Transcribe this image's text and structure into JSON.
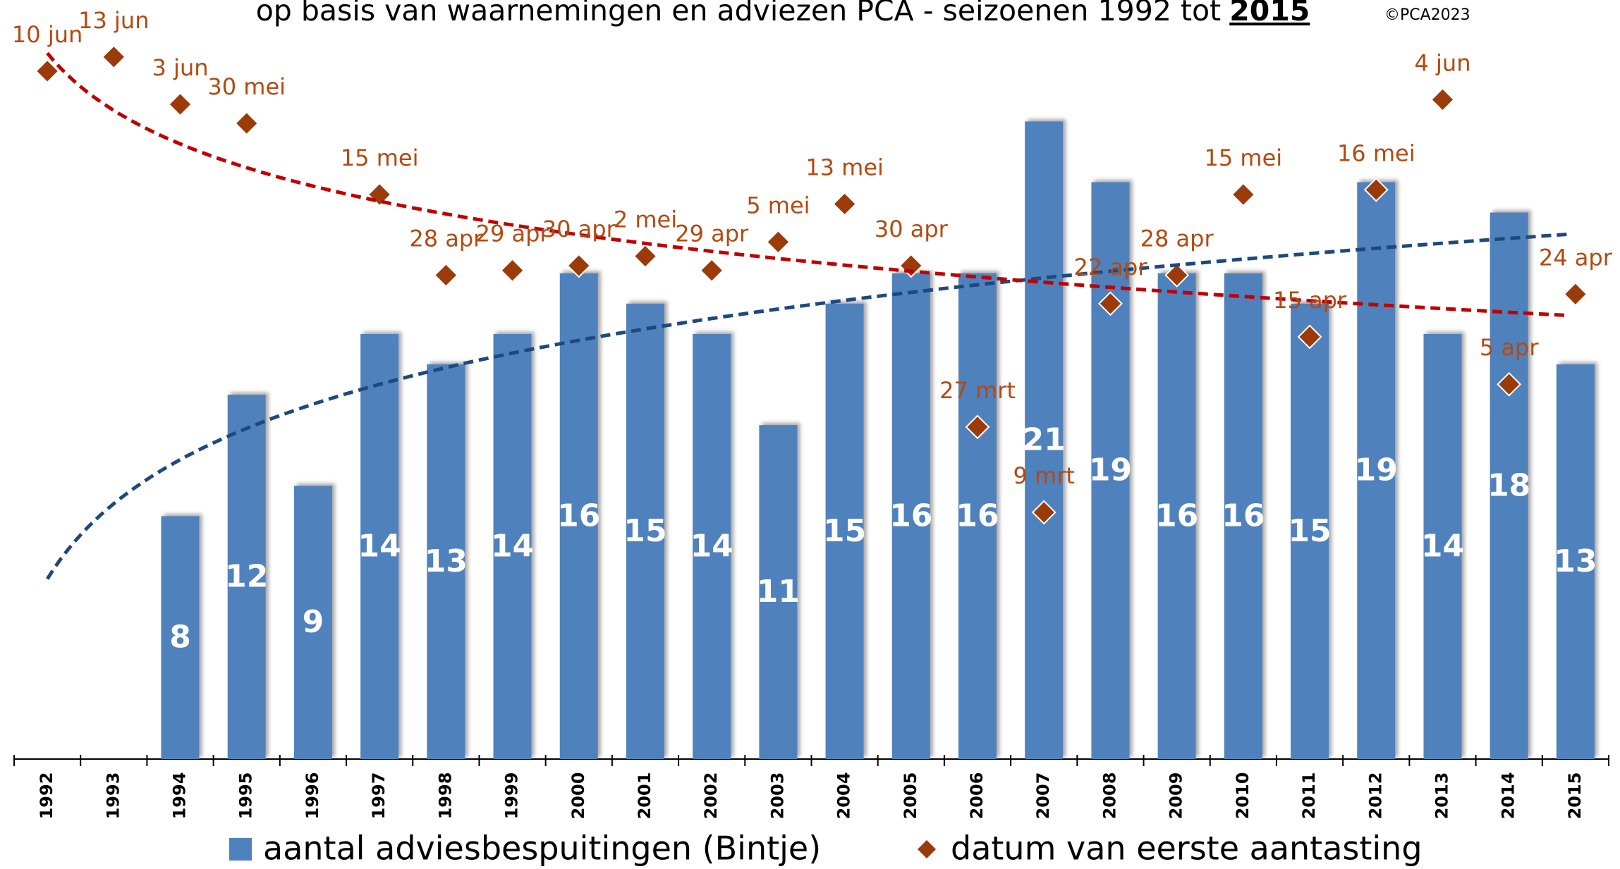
{
  "chart_data": {
    "type": "bar",
    "title": "op basis van waarnemingen en adviezen PCA - seizoenen 1992 tot",
    "title_emphasis": "2015",
    "copyright": "©PCA2023",
    "categories": [
      "1992",
      "1993",
      "1994",
      "1995",
      "1996",
      "1997",
      "1998",
      "1999",
      "2000",
      "2001",
      "2002",
      "2003",
      "2004",
      "2005",
      "2006",
      "2007",
      "2008",
      "2009",
      "2010",
      "2011",
      "2012",
      "2013",
      "2014",
      "2015"
    ],
    "ylim": [
      0,
      25
    ],
    "y2lim": [
      16,
      176
    ],
    "legend": "bottom",
    "series": [
      {
        "name": "aantal adviesbespuitingen (Bintje)",
        "type": "bar",
        "color": "#4f81bd",
        "trendline": "logarithmic",
        "trend_color": "#1f497d",
        "values": [
          null,
          null,
          8,
          12,
          9,
          14,
          13,
          14,
          16,
          15,
          14,
          11,
          15,
          16,
          16,
          21,
          19,
          16,
          16,
          15,
          19,
          14,
          18,
          13
        ]
      },
      {
        "name": "datum van eerste aantasting",
        "type": "scatter",
        "axis": "y2",
        "color": "#9c3b0a",
        "trendline": "logarithmic",
        "trend_color": "#c00000",
        "values": [
          161,
          164,
          154,
          150,
          null,
          135,
          118,
          119,
          120,
          122,
          119,
          125,
          133,
          120,
          86,
          68,
          112,
          118,
          135,
          105,
          136,
          155,
          95,
          114
        ],
        "value_labels": [
          "10 jun",
          "13 jun",
          "3 jun",
          "30 mei",
          null,
          "15 mei",
          "28 apr",
          "29 apr",
          "30 apr",
          "2 mei",
          "29 apr",
          "5 mei",
          "13 mei",
          "30 apr",
          "27 mrt",
          "9 mrt",
          "22 apr",
          "28 apr",
          "15 mei",
          "15 apr",
          "16 mei",
          "4 jun",
          "5 apr",
          "24 apr"
        ]
      }
    ]
  }
}
